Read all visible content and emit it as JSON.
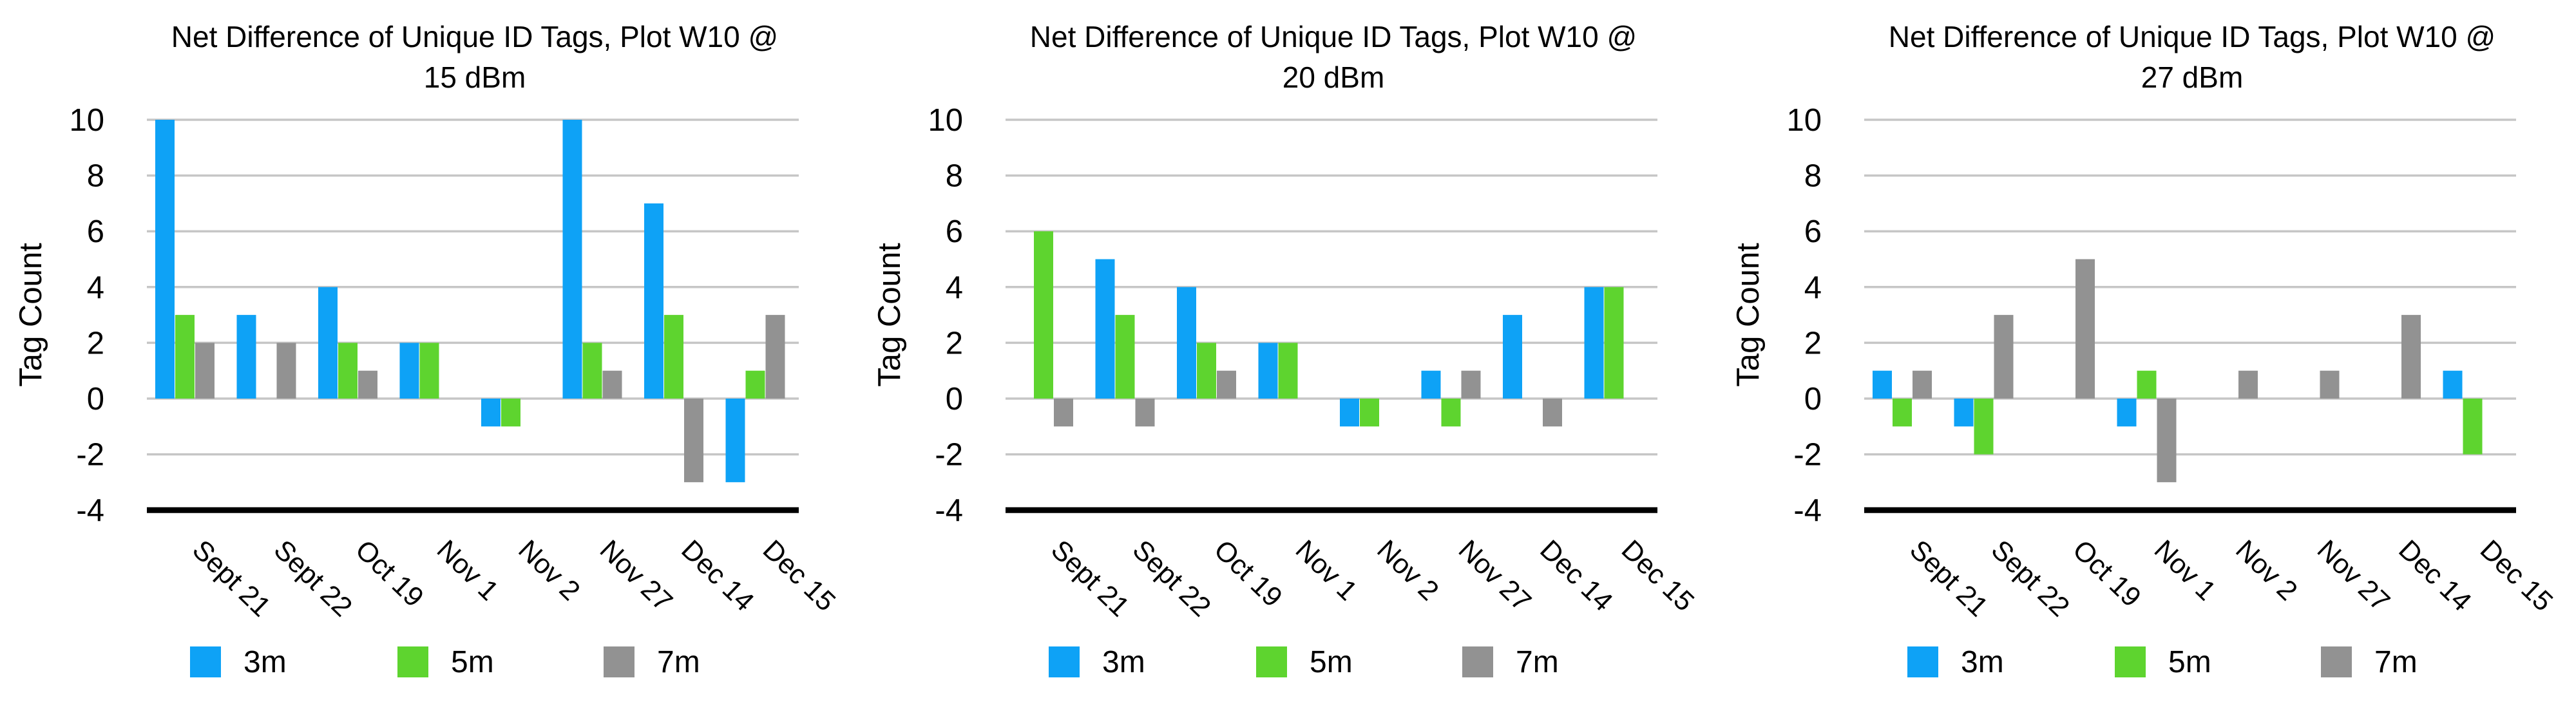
{
  "page": {
    "background": "#ffffff"
  },
  "ylabel": "Tag Count",
  "legend": [
    {
      "label": "3m",
      "color": "#0ea2f6"
    },
    {
      "label": "5m",
      "color": "#5ed42f"
    },
    {
      "label": "7m",
      "color": "#929292"
    }
  ],
  "colors": {
    "series_3m": "#0ea2f6",
    "series_5m": "#5ed42f",
    "series_7m": "#929292",
    "gridline": "#c6c6c6",
    "axis": "#000000",
    "text": "#000000",
    "background": "#ffffff"
  },
  "chart_data": [
    {
      "type": "bar",
      "title": "Net Difference of Unique ID Tags, Plot W10 @ 15 dBm",
      "title_lines": [
        "Net Difference of Unique ID Tags, Plot W10 @",
        "15 dBm"
      ],
      "xlabel": "",
      "ylabel": "Tag Count",
      "ylim": [
        -4,
        10
      ],
      "yticks": [
        10,
        8,
        6,
        4,
        2,
        0,
        -2,
        -4
      ],
      "grid": true,
      "legend_position": "bottom",
      "categories": [
        "Sept 21",
        "Sept 22",
        "Oct 19",
        "Nov 1",
        "Nov 2",
        "Nov 27",
        "Dec 14",
        "Dec 15"
      ],
      "series": [
        {
          "name": "3m",
          "color": "#0ea2f6",
          "values": [
            10,
            3,
            4,
            2,
            -1,
            10,
            7,
            -3
          ]
        },
        {
          "name": "5m",
          "color": "#5ed42f",
          "values": [
            3,
            0,
            2,
            2,
            -1,
            2,
            3,
            1
          ]
        },
        {
          "name": "7m",
          "color": "#929292",
          "values": [
            2,
            2,
            1,
            0,
            0,
            1,
            -3,
            3
          ]
        }
      ]
    },
    {
      "type": "bar",
      "title": "Net Difference of Unique ID Tags, Plot W10 @ 20 dBm",
      "title_lines": [
        "Net Difference of Unique ID Tags, Plot W10 @",
        "20 dBm"
      ],
      "xlabel": "",
      "ylabel": "Tag Count",
      "ylim": [
        -4,
        10
      ],
      "yticks": [
        10,
        8,
        6,
        4,
        2,
        0,
        -2,
        -4
      ],
      "grid": true,
      "legend_position": "bottom",
      "categories": [
        "Sept 21",
        "Sept 22",
        "Oct 19",
        "Nov 1",
        "Nov 2",
        "Nov 27",
        "Dec 14",
        "Dec 15"
      ],
      "series": [
        {
          "name": "3m",
          "color": "#0ea2f6",
          "values": [
            0,
            5,
            4,
            2,
            -1,
            1,
            3,
            4
          ]
        },
        {
          "name": "5m",
          "color": "#5ed42f",
          "values": [
            6,
            3,
            2,
            2,
            -1,
            -1,
            0,
            4
          ]
        },
        {
          "name": "7m",
          "color": "#929292",
          "values": [
            -1,
            -1,
            1,
            0,
            0,
            1,
            -1,
            0
          ]
        }
      ]
    },
    {
      "type": "bar",
      "title": "Net Difference of Unique ID Tags, Plot W10 @ 27 dBm",
      "title_lines": [
        "Net Difference of Unique ID Tags, Plot W10 @",
        "27 dBm"
      ],
      "xlabel": "",
      "ylabel": "Tag Count",
      "ylim": [
        -4,
        10
      ],
      "yticks": [
        10,
        8,
        6,
        4,
        2,
        0,
        -2,
        -4
      ],
      "grid": true,
      "legend_position": "bottom",
      "categories": [
        "Sept 21",
        "Sept 22",
        "Oct 19",
        "Nov 1",
        "Nov 2",
        "Nov 27",
        "Dec 14",
        "Dec 15"
      ],
      "series": [
        {
          "name": "3m",
          "color": "#0ea2f6",
          "values": [
            1,
            -1,
            0,
            -1,
            0,
            0,
            0,
            1
          ]
        },
        {
          "name": "5m",
          "color": "#5ed42f",
          "values": [
            -1,
            -2,
            0,
            1,
            0,
            0,
            0,
            -2
          ]
        },
        {
          "name": "7m",
          "color": "#929292",
          "values": [
            1,
            3,
            5,
            -3,
            1,
            1,
            3,
            0
          ]
        }
      ]
    }
  ]
}
